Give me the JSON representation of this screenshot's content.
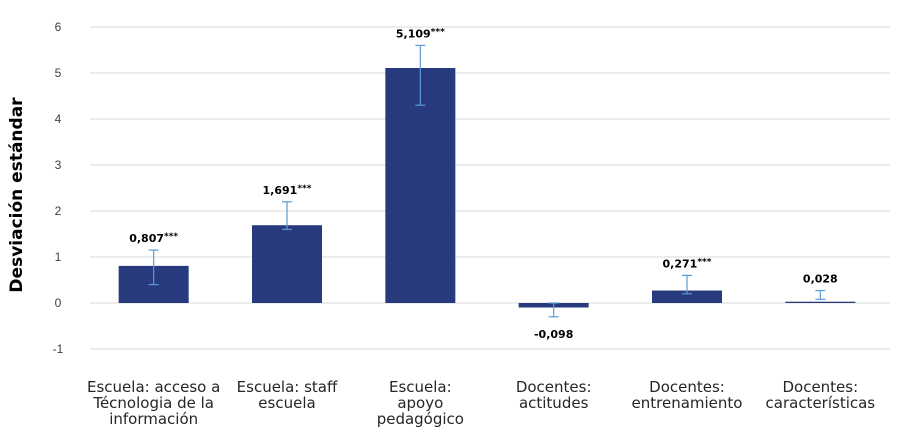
{
  "chart_data": {
    "type": "bar",
    "title": "",
    "xlabel": "",
    "ylabel": "Desviación estándar",
    "ylim": [
      -1,
      6
    ],
    "yticks": [
      "-1",
      "0",
      "1",
      "2",
      "3",
      "4",
      "5",
      "6"
    ],
    "grid": true,
    "bar_color": "#283a7e",
    "errorbar_color": "#5b9bd5",
    "categories": [
      [
        "Escuela: acceso a",
        "Técnologia de la",
        "información"
      ],
      [
        "Escuela: staff",
        "escuela"
      ],
      [
        "Escuela:",
        "apoyo",
        "pedagógico"
      ],
      [
        "Docentes:",
        "actitudes"
      ],
      [
        "Docentes:",
        "entrenamiento"
      ],
      [
        "Docentes:",
        "características"
      ]
    ],
    "values": [
      0.807,
      1.691,
      5.109,
      -0.098,
      0.271,
      0.028
    ],
    "error_low": [
      0.4,
      1.6,
      4.3,
      -0.3,
      0.2,
      0.08
    ],
    "error_high": [
      1.15,
      2.2,
      5.6,
      0.0,
      0.6,
      0.27
    ],
    "value_labels": [
      {
        "value": "0,807",
        "sig": "***"
      },
      {
        "value": "1,691",
        "sig": "***"
      },
      {
        "value": "5,109",
        "sig": "***"
      },
      {
        "value": "-0,098",
        "sig": ""
      },
      {
        "value": "0,271",
        "sig": "***"
      },
      {
        "value": "0,028",
        "sig": ""
      }
    ]
  }
}
